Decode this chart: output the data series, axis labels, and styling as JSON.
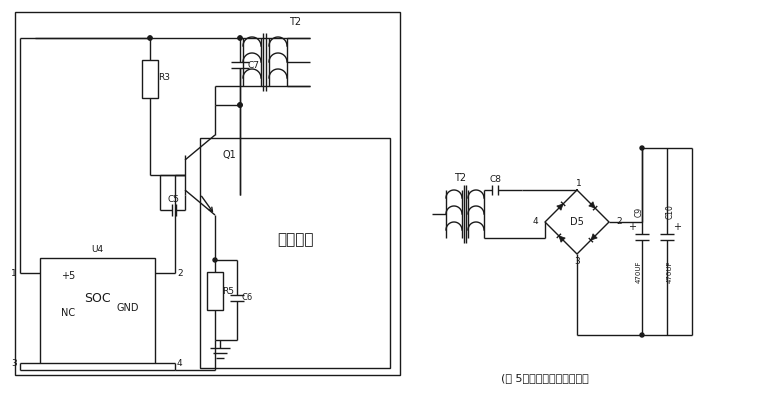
{
  "bg_color": "#ffffff",
  "line_color": "#1a1a1a",
  "figsize": [
    7.73,
    3.98
  ],
  "dpi": 100,
  "title_text": "(图 5）（发射、接收模块）",
  "label_fa_she_mo_kuai": "发射模块",
  "comp_labels": {
    "T2_left": "T2",
    "C7": "C7",
    "R3": "R3",
    "Q1": "Q1",
    "C5": "C5",
    "R5": "R5",
    "C6": "C6",
    "SOC": "SOC",
    "NC": "NC",
    "GND": "GND",
    "plus5": "+5",
    "U4": "U4",
    "T2_right": "T2",
    "C8": "C8",
    "D5": "D5",
    "C9": "C9",
    "C10": "C10",
    "cap9_label": "470UF",
    "cap10_label": "470UF"
  }
}
